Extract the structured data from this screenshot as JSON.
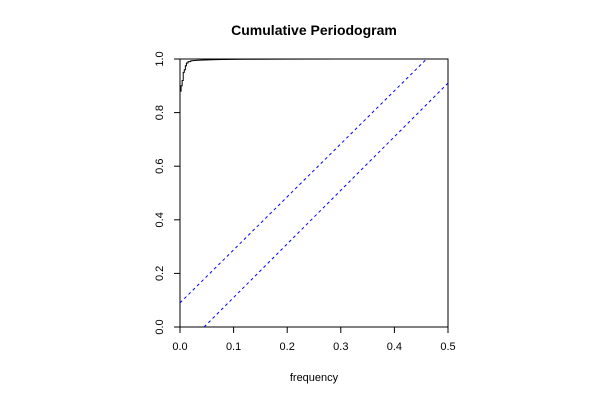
{
  "chart_data": {
    "type": "line",
    "title": "Cumulative Periodogram",
    "xlabel": "frequency",
    "ylabel": "",
    "xlim": [
      0,
      0.5
    ],
    "ylim": [
      0,
      1
    ],
    "x_ticks": [
      "0.0",
      "0.1",
      "0.2",
      "0.3",
      "0.4",
      "0.5"
    ],
    "y_ticks": [
      "0.0",
      "0.2",
      "0.4",
      "0.6",
      "0.8",
      "1.0"
    ],
    "grid": false,
    "legend": "none",
    "series": [
      {
        "color": "#000000",
        "style": "solid-step",
        "x": [
          0.0,
          0.0,
          0.002,
          0.002,
          0.004,
          0.004,
          0.006,
          0.006,
          0.008,
          0.008,
          0.01,
          0.01,
          0.012,
          0.012,
          0.015,
          0.015,
          0.02,
          0.02,
          0.03,
          0.04,
          0.06,
          0.08,
          0.12,
          0.2,
          0.3,
          0.4,
          0.5
        ],
        "y": [
          0.0,
          0.88,
          0.88,
          0.9,
          0.9,
          0.92,
          0.92,
          0.95,
          0.95,
          0.96,
          0.96,
          0.975,
          0.975,
          0.985,
          0.985,
          0.99,
          0.99,
          0.993,
          0.995,
          0.996,
          0.997,
          0.998,
          0.999,
          0.9995,
          0.9998,
          1.0,
          1.0
        ]
      },
      {
        "color": "#0000ff",
        "style": "dashed",
        "x": [
          0.0,
          0.46
        ],
        "y": [
          0.09,
          1.0
        ]
      },
      {
        "color": "#0000ff",
        "style": "dashed",
        "x": [
          0.045,
          0.5
        ],
        "y": [
          0.0,
          0.91
        ]
      }
    ]
  }
}
